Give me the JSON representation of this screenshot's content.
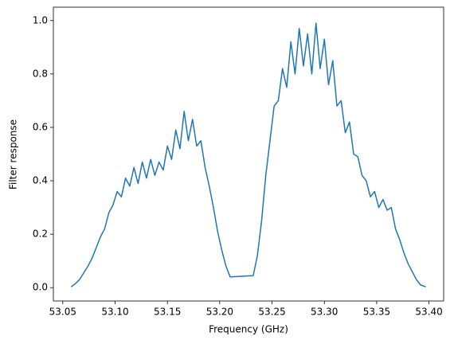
{
  "chart_data": {
    "type": "line",
    "xlabel": "Frequency (GHz)",
    "ylabel": "Filter response",
    "x": [
      53.058,
      53.062,
      53.066,
      53.07,
      53.074,
      53.078,
      53.082,
      53.086,
      53.09,
      53.094,
      53.098,
      53.102,
      53.106,
      53.11,
      53.114,
      53.118,
      53.122,
      53.126,
      53.13,
      53.134,
      53.138,
      53.142,
      53.146,
      53.15,
      53.154,
      53.158,
      53.162,
      53.166,
      53.17,
      53.174,
      53.178,
      53.182,
      53.186,
      53.19,
      53.194,
      53.198,
      53.202,
      53.206,
      53.21,
      53.232,
      53.236,
      53.24,
      53.244,
      53.248,
      53.252,
      53.256,
      53.26,
      53.264,
      53.268,
      53.272,
      53.276,
      53.28,
      53.284,
      53.288,
      53.292,
      53.296,
      53.3,
      53.304,
      53.308,
      53.312,
      53.316,
      53.32,
      53.324,
      53.328,
      53.332,
      53.336,
      53.34,
      53.344,
      53.348,
      53.352,
      53.356,
      53.36,
      53.364,
      53.368,
      53.372,
      53.376,
      53.38,
      53.384,
      53.388,
      53.392,
      53.397
    ],
    "series": [
      {
        "color": "#1f77b4",
        "values": [
          0.003,
          0.015,
          0.03,
          0.055,
          0.08,
          0.11,
          0.15,
          0.19,
          0.22,
          0.28,
          0.31,
          0.36,
          0.34,
          0.41,
          0.38,
          0.45,
          0.39,
          0.47,
          0.41,
          0.48,
          0.42,
          0.47,
          0.44,
          0.53,
          0.48,
          0.59,
          0.52,
          0.66,
          0.55,
          0.63,
          0.53,
          0.55,
          0.45,
          0.38,
          0.3,
          0.21,
          0.14,
          0.08,
          0.04,
          0.045,
          0.12,
          0.25,
          0.42,
          0.55,
          0.68,
          0.7,
          0.82,
          0.75,
          0.92,
          0.8,
          0.97,
          0.83,
          0.95,
          0.8,
          0.99,
          0.82,
          0.93,
          0.76,
          0.85,
          0.68,
          0.7,
          0.58,
          0.62,
          0.5,
          0.49,
          0.42,
          0.4,
          0.34,
          0.36,
          0.3,
          0.33,
          0.29,
          0.3,
          0.22,
          0.18,
          0.13,
          0.09,
          0.06,
          0.03,
          0.01,
          0.003
        ]
      }
    ],
    "xlim": [
      53.041,
      53.414
    ],
    "xticks": [
      53.05,
      {
        "value": 53.1,
        "label": "53.10"
      },
      53.15,
      {
        "value": 53.2,
        "label": "53.20"
      },
      53.25,
      {
        "value": 53.3,
        "label": "53.30"
      },
      53.35,
      {
        "value": 53.4,
        "label": "53.40"
      }
    ],
    "ylim": [
      -0.05,
      1.05
    ],
    "yticks": [
      {
        "value": 0,
        "label": "0.0"
      },
      0.2,
      0.4,
      0.6,
      0.8,
      {
        "value": 1,
        "label": "1.0"
      }
    ]
  }
}
